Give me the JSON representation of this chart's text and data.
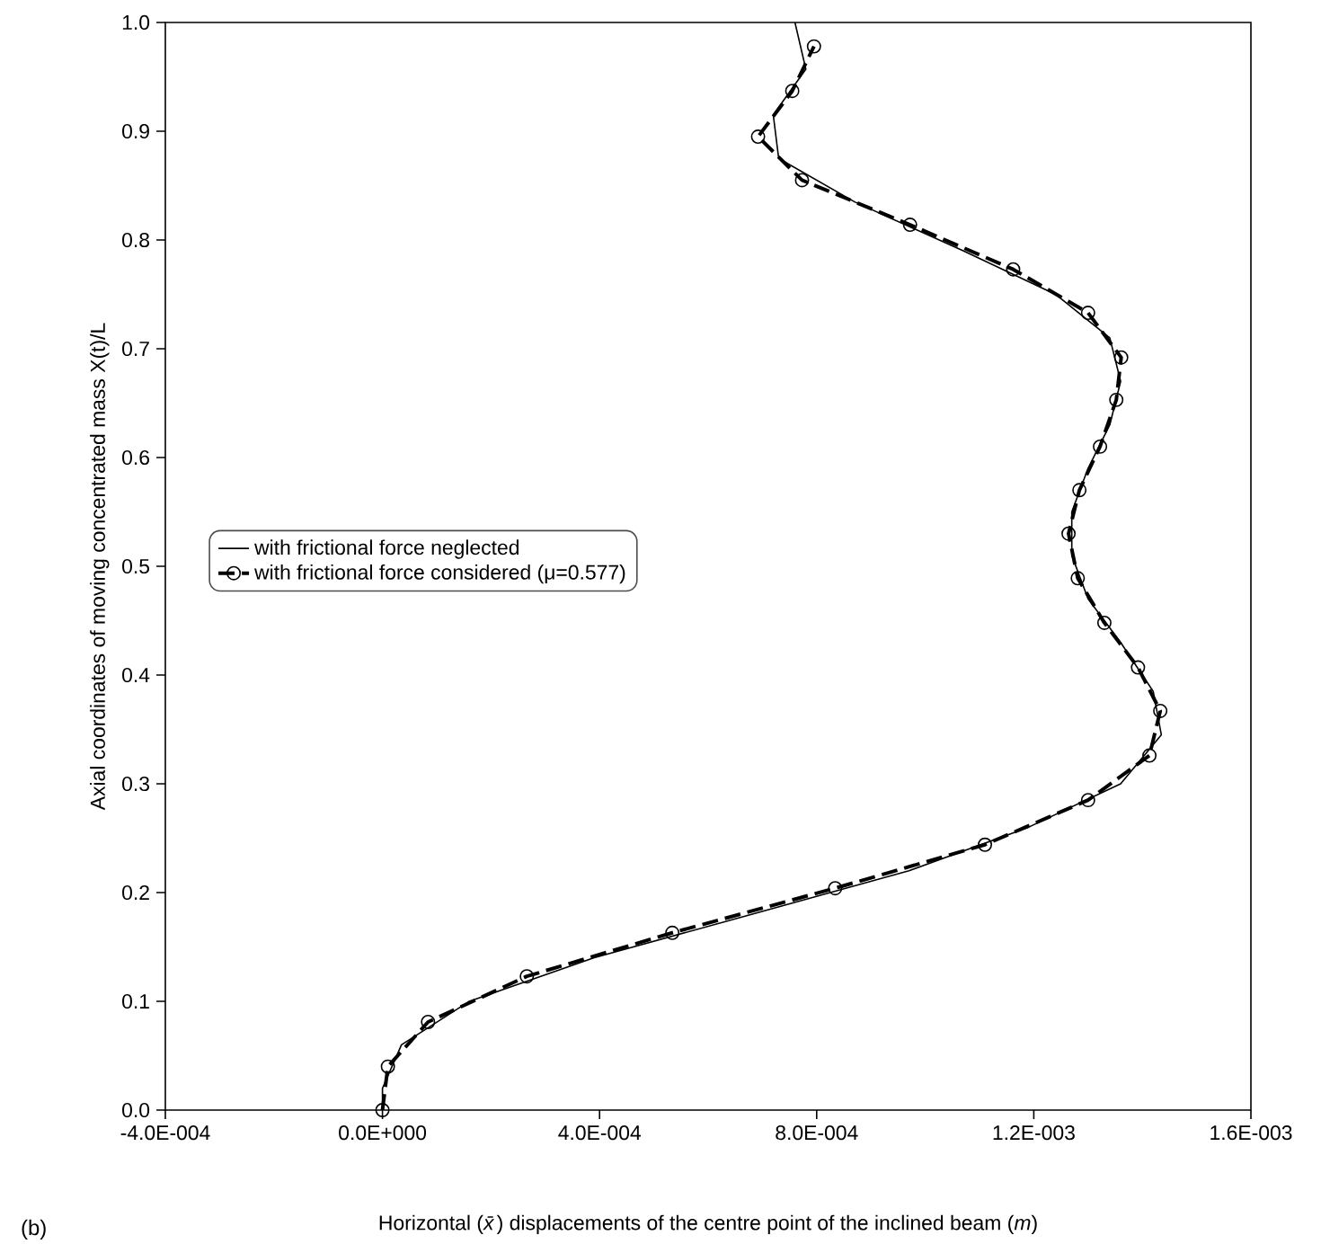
{
  "chart_data": {
    "type": "line",
    "xlabel": "Horizontal (*x̄*) displacements of the centre point of the inclined beam (*m*)",
    "ylabel": "Axial coordinates of moving concentrated mass X(t)/L",
    "annotations": [
      "(b)"
    ],
    "xlim": [
      -0.0004,
      0.0016
    ],
    "xticks": [
      {
        "value": -0.0004,
        "label": "-4.0E-004"
      },
      {
        "value": 0,
        "label": "0.0E+000"
      },
      {
        "value": 0.0004,
        "label": "4.0E-004"
      },
      {
        "value": 0.0008,
        "label": "8.0E-004"
      },
      {
        "value": 0.0012,
        "label": "1.2E-003"
      },
      {
        "value": 0.0016,
        "label": "1.6E-003"
      }
    ],
    "ylim": [
      0,
      1
    ],
    "yticks": [
      {
        "value": 0,
        "label": "0.0"
      },
      0.1,
      0.2,
      0.3,
      0.4,
      0.5,
      0.6,
      0.7,
      0.8,
      0.9,
      {
        "value": 1,
        "label": "1.0"
      }
    ],
    "legend": "left",
    "series": [
      {
        "name": "with frictional force neglected",
        "color": "#000000",
        "marker": "none",
        "line_style": "solid",
        "x": [
          0,
          0,
          3.5e-05,
          0.00016,
          0.00039,
          0.00068,
          0.00097,
          0.00119,
          0.00136,
          0.001435,
          0.00142,
          0.00136,
          0.0013,
          0.00127,
          0.00127,
          0.0013,
          0.00134,
          0.00136,
          0.00134,
          0.00124,
          0.00107,
          0.00087,
          0.00073,
          0.00072,
          0.00078,
          0.00076
        ],
        "values": [
          0,
          0.02,
          0.06,
          0.1,
          0.14,
          0.18,
          0.22,
          0.26,
          0.3,
          0.345,
          0.385,
          0.43,
          0.47,
          0.51,
          0.55,
          0.59,
          0.63,
          0.67,
          0.71,
          0.75,
          0.79,
          0.835,
          0.875,
          0.915,
          0.957,
          1.0
        ]
      },
      {
        "name": "with frictional force considered (μ=0.577)",
        "color": "#000000",
        "marker": "circle",
        "line_style": "dashed",
        "x": [
          0,
          1e-05,
          8.4e-05,
          0.000266,
          0.000534,
          0.000834,
          0.00111,
          0.0013,
          0.001413,
          0.001433,
          0.001392,
          0.00133,
          0.001281,
          0.001264,
          0.001284,
          0.001322,
          0.001352,
          0.001361,
          0.0013,
          0.001162,
          0.000972,
          0.000773,
          0.000692,
          0.000755,
          0.000795
        ],
        "values": [
          0,
          0.04,
          0.081,
          0.123,
          0.163,
          0.204,
          0.244,
          0.285,
          0.326,
          0.367,
          0.407,
          0.448,
          0.489,
          0.53,
          0.57,
          0.61,
          0.653,
          0.692,
          0.733,
          0.773,
          0.814,
          0.855,
          0.895,
          0.937,
          0.978
        ]
      }
    ]
  }
}
